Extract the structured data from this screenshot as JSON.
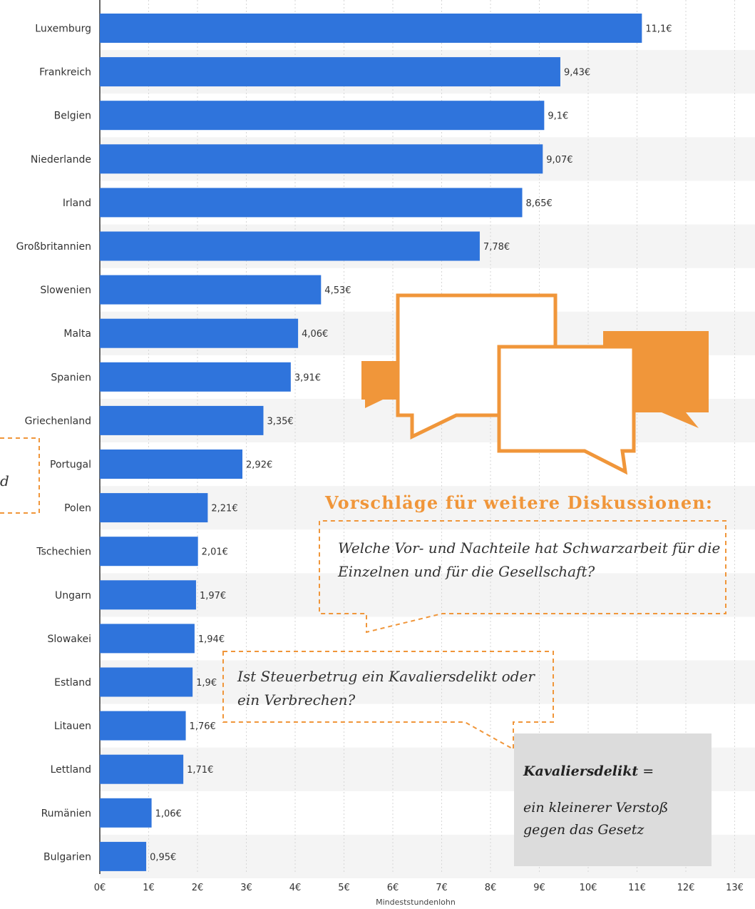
{
  "chart_data": {
    "type": "bar",
    "orientation": "horizontal",
    "categories": [
      "Luxemburg",
      "Frankreich",
      "Belgien",
      "Niederlande",
      "Irland",
      "Großbritannien",
      "Slowenien",
      "Malta",
      "Spanien",
      "Griechenland",
      "Portugal",
      "Polen",
      "Tschechien",
      "Ungarn",
      "Slowakei",
      "Estland",
      "Litauen",
      "Lettland",
      "Rumänien",
      "Bulgarien"
    ],
    "values": [
      11.1,
      9.43,
      9.1,
      9.07,
      8.65,
      7.78,
      4.53,
      4.06,
      3.91,
      3.35,
      2.92,
      2.21,
      2.01,
      1.97,
      1.94,
      1.9,
      1.76,
      1.71,
      1.06,
      0.95
    ],
    "value_labels": [
      "11,1€",
      "9,43€",
      "9,1€",
      "9,07€",
      "8,65€",
      "7,78€",
      "4,53€",
      "4,06€",
      "3,91€",
      "3,35€",
      "2,92€",
      "2,21€",
      "2,01€",
      "1,97€",
      "1,94€",
      "1,9€",
      "1,76€",
      "1,71€",
      "1,06€",
      "0,95€"
    ],
    "xticks": [
      "0€",
      "1€",
      "2€",
      "3€",
      "4€",
      "5€",
      "6€",
      "7€",
      "8€",
      "9€",
      "10€",
      "11€",
      "12€",
      "13€"
    ],
    "xlim": [
      0,
      13
    ],
    "xlabel": "Mindeststundenlohn",
    "ylabel": "",
    "grid": true,
    "colors": {
      "bar": "#2f74dc",
      "grid": "#d6d6d6",
      "stripe": "#f4f4f4"
    }
  },
  "overlay": {
    "heading": "Vorschläge für weitere Diskussionen:",
    "question1": "Welche Vor- und Nachteile hat Schwarzarbeit für die Einzelnen und für die Gesellschaft?",
    "question2": "Ist Steuerbetrug ein Kavaliersdelikt oder ein Verbrechen?",
    "left_fragment": "d",
    "definition_term": "Kavaliersdelikt",
    "definition_eq": " =",
    "definition_text": "ein kleinerer Verstoß gegen das Gesetz",
    "accent_color": "#f0963a",
    "icon": "speech-bubbles-icon"
  }
}
